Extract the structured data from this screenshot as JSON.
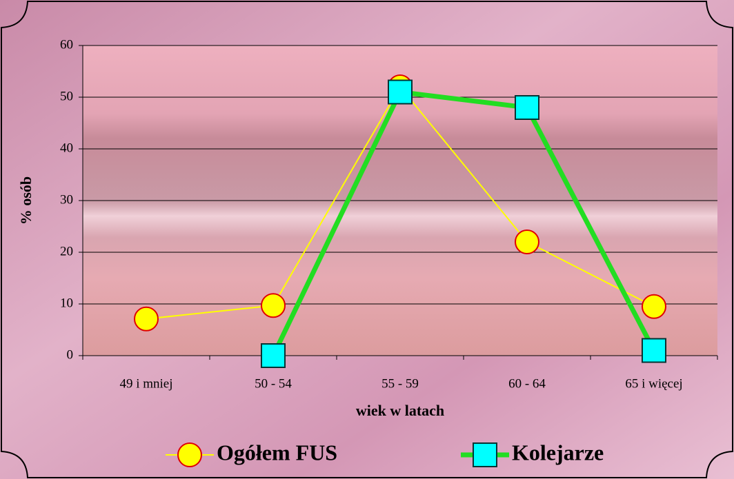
{
  "chart_data": {
    "type": "line",
    "x_label": "wiek w latach",
    "y_label": "% osób",
    "categories": [
      "49 i mniej",
      "50 - 54",
      "55 - 59",
      "60 - 64",
      "65  i więcej"
    ],
    "series": [
      {
        "name": "Ogółem FUS",
        "color": "#ffff00",
        "values": [
          7.1,
          9.7,
          52,
          22,
          9.5
        ]
      },
      {
        "name": "Kolejarze",
        "color": "#22dd22",
        "values": [
          null,
          0,
          51,
          48,
          1
        ]
      }
    ],
    "ylim": [
      0,
      60
    ],
    "yticks": [
      0,
      10,
      20,
      30,
      40,
      50,
      60
    ],
    "grid": true
  }
}
